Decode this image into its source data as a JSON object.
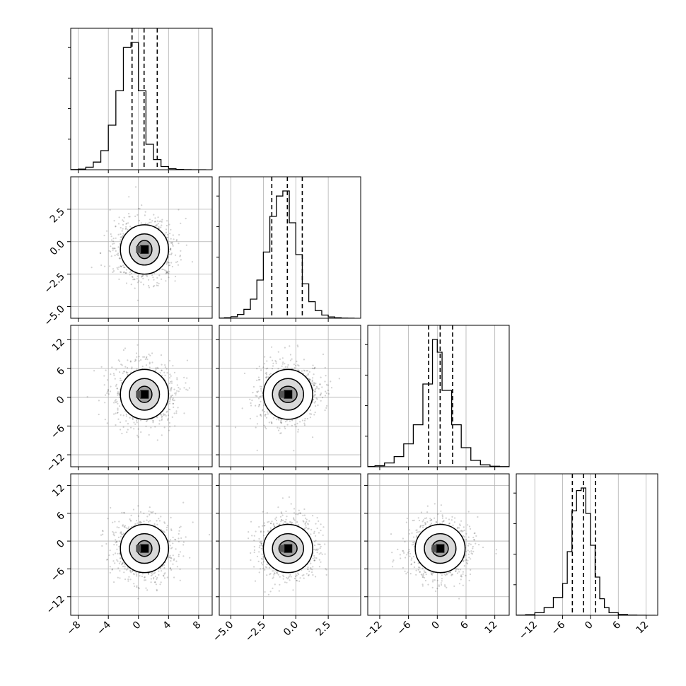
{
  "chart_data": {
    "type": "corner",
    "grid": true,
    "parameters": [
      {
        "range": [
          -9,
          9.8
        ],
        "ticks": [
          {
            "v": -8,
            "label": "−8"
          },
          {
            "v": -4,
            "label": "−4"
          },
          {
            "v": 0,
            "label": "0"
          },
          {
            "v": 4,
            "label": "4"
          },
          {
            "v": 8,
            "label": "8"
          }
        ],
        "quantiles": [
          -0.85,
          0.75,
          2.5
        ],
        "center": 0.8,
        "contour_sizes": [
          1.0,
          2.0,
          3.2
        ],
        "hist_bins": [
          -9,
          -8,
          -7,
          -6,
          -5,
          -4,
          -3,
          -2,
          -1,
          0,
          1,
          2,
          3,
          4,
          5,
          6,
          7,
          8,
          9
        ],
        "hist_counts": [
          0.001,
          0.005,
          0.02,
          0.06,
          0.15,
          0.35,
          0.62,
          0.96,
          1.0,
          0.62,
          0.2,
          0.08,
          0.025,
          0.008,
          0.002,
          0.0005,
          0,
          0
        ]
      },
      {
        "range": [
          -5.9,
          5.0
        ],
        "ticks": [
          {
            "v": -5,
            "label": "−5.0"
          },
          {
            "v": -2.5,
            "label": "−2.5"
          },
          {
            "v": 0,
            "label": "0.0"
          },
          {
            "v": 2.5,
            "label": "2.5"
          }
        ],
        "quantiles": [
          -1.85,
          -0.65,
          0.5
        ],
        "center": -0.6,
        "contour_sizes": [
          0.7,
          1.2,
          1.9
        ],
        "hist_bins": [
          -6,
          -5.5,
          -5,
          -4.5,
          -4,
          -3.5,
          -3,
          -2.5,
          -2,
          -1.5,
          -1,
          -0.5,
          0,
          0.5,
          1,
          1.5,
          2,
          2.5,
          3,
          3.5,
          4,
          4.5
        ],
        "hist_counts": [
          0.001,
          0.004,
          0.012,
          0.03,
          0.07,
          0.15,
          0.3,
          0.52,
          0.8,
          0.96,
          1.0,
          0.75,
          0.5,
          0.27,
          0.13,
          0.06,
          0.025,
          0.01,
          0.004,
          0.001,
          0.0005
        ]
      },
      {
        "range": [
          -14.5,
          15
        ],
        "ticks": [
          {
            "v": -12,
            "label": "−12"
          },
          {
            "v": -6,
            "label": "−6"
          },
          {
            "v": 0,
            "label": "0"
          },
          {
            "v": 6,
            "label": "6"
          },
          {
            "v": 12,
            "label": "12"
          }
        ],
        "quantiles": [
          -1.8,
          0.6,
          3.2
        ],
        "center": 0.6,
        "contour_sizes": [
          1.7,
          3.3,
          5.2
        ],
        "hist_bins": [
          -15,
          -13,
          -11,
          -9,
          -7,
          -5,
          -3,
          -1,
          0,
          1,
          3,
          5,
          7,
          9,
          11,
          13,
          15
        ],
        "hist_counts": [
          0.002,
          0.008,
          0.03,
          0.08,
          0.18,
          0.33,
          0.65,
          1.0,
          0.9,
          0.6,
          0.33,
          0.15,
          0.05,
          0.015,
          0.004,
          0.001
        ]
      },
      {
        "range": [
          -16,
          14.5
        ],
        "ticks": [
          {
            "v": -12,
            "label": "−12"
          },
          {
            "v": -6,
            "label": "−6"
          },
          {
            "v": 0,
            "label": "0"
          },
          {
            "v": 6,
            "label": "6"
          },
          {
            "v": 12,
            "label": "12"
          }
        ],
        "quantiles": [
          -3.9,
          -1.5,
          1.1
        ],
        "center": -1.6,
        "contour_sizes": [
          1.7,
          3.2,
          5.2
        ],
        "hist_bins": [
          -16,
          -14,
          -12,
          -10,
          -8,
          -6,
          -5,
          -4,
          -3,
          -2,
          -1,
          0,
          1,
          2,
          3,
          4,
          6,
          8,
          10,
          12,
          14
        ],
        "hist_counts": [
          0.001,
          0.005,
          0.02,
          0.06,
          0.14,
          0.25,
          0.5,
          0.82,
          0.98,
          1.0,
          0.8,
          0.55,
          0.3,
          0.13,
          0.06,
          0.02,
          0.006,
          0.002,
          0.0005,
          0
        ]
      }
    ]
  }
}
